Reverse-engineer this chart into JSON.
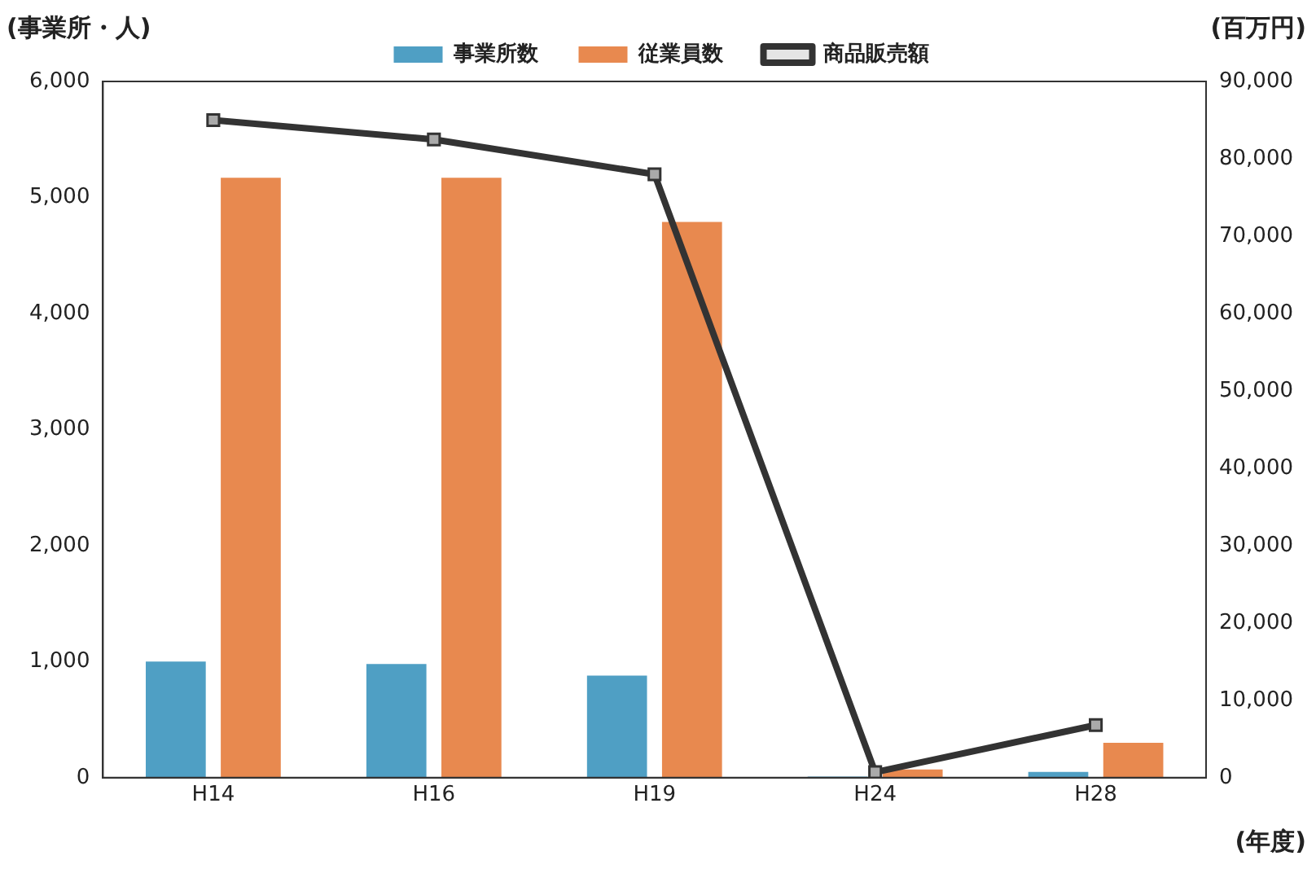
{
  "chart_data": {
    "type": "bar",
    "ylabel": "(事業所・人)",
    "y2label": "(百万円)",
    "xlabel": "(年度)",
    "categories": [
      "H14",
      "H16",
      "H19",
      "H24",
      "H28"
    ],
    "series": [
      {
        "name": "事業所数",
        "color": "#4f9fc4",
        "values": [
          1000,
          980,
          880,
          10,
          50
        ]
      },
      {
        "name": "従業員数",
        "color": "#e8894f",
        "values": [
          5170,
          5170,
          4790,
          70,
          300
        ]
      },
      {
        "name": "商品販売額",
        "type": "line",
        "axis": "y2",
        "color": "#333333",
        "marker": "square",
        "values": [
          85000,
          82500,
          78000,
          700,
          6800
        ]
      }
    ],
    "ylim": [
      0,
      6000
    ],
    "yticks": [
      0,
      {
        "value": 1000,
        "label": "1,000"
      },
      {
        "value": 2000,
        "label": "2,000"
      },
      {
        "value": 3000,
        "label": "3,000"
      },
      {
        "value": 4000,
        "label": "4,000"
      },
      {
        "value": 5000,
        "label": "5,000"
      },
      {
        "value": 6000,
        "label": "6,000"
      }
    ],
    "y2lim": [
      0,
      90000
    ],
    "y2ticks": [
      0,
      {
        "value": 10000,
        "label": "10,000"
      },
      {
        "value": 20000,
        "label": "20,000"
      },
      {
        "value": 30000,
        "label": "30,000"
      },
      {
        "value": 40000,
        "label": "40,000"
      },
      {
        "value": 50000,
        "label": "50,000"
      },
      {
        "value": 60000,
        "label": "60,000"
      },
      {
        "value": 70000,
        "label": "70,000"
      },
      {
        "value": 80000,
        "label": "80,000"
      },
      {
        "value": 90000,
        "label": "90,000"
      }
    ],
    "grid": false,
    "legend": "top"
  }
}
